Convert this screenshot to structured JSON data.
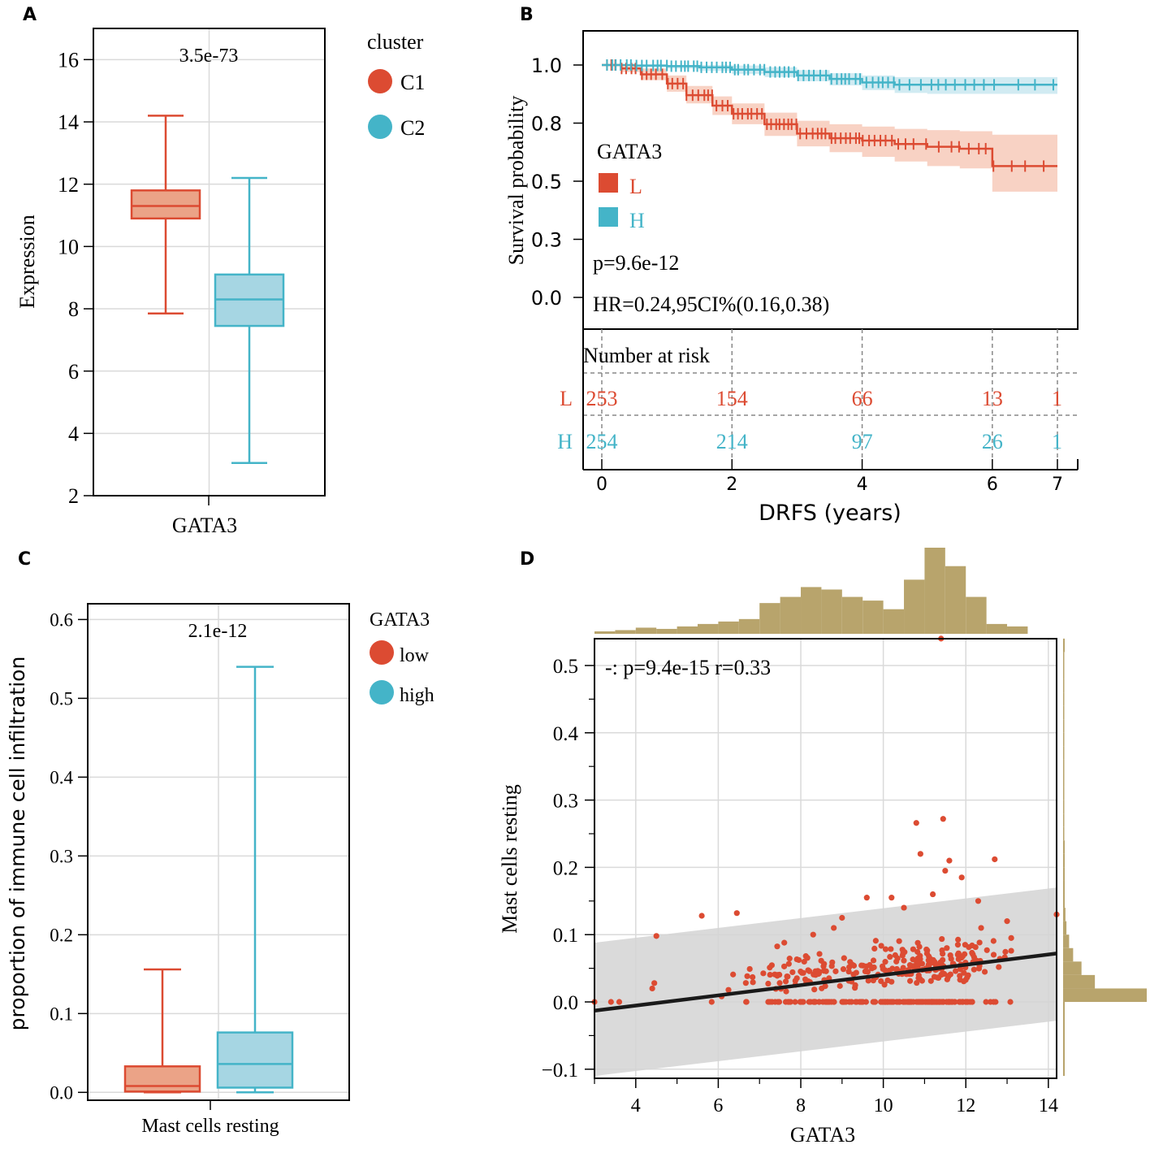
{
  "colors": {
    "red": "#dc4b32",
    "blue": "#44b4c8",
    "red_fill": "#eba387",
    "blue_fill": "#a6d6e3",
    "red_band": "#f5c3b0",
    "blue_band": "#c1e4ee",
    "gold": "#b8a46c",
    "ci_gray": "#d3d3d3",
    "grid": "#dadada",
    "risk_line": "#888888"
  },
  "chart_data": [
    {
      "panel": "A",
      "type": "box",
      "annotation": "3.5e-73",
      "xlabel": "GATA3",
      "ylabel": "Expression",
      "ylim": [
        2,
        17
      ],
      "yticks": [
        "2",
        "4",
        "6",
        "8",
        "10",
        "12",
        "14",
        "16"
      ],
      "legend": {
        "title": "cluster",
        "position": "right",
        "entries": [
          "C1",
          "C2"
        ]
      },
      "boxes": [
        {
          "name": "C1",
          "whisker_low": 7.85,
          "q1": 10.9,
          "median": 11.3,
          "q3": 11.8,
          "whisker_high": 14.2
        },
        {
          "name": "C2",
          "whisker_low": 3.05,
          "q1": 7.45,
          "median": 8.3,
          "q3": 9.1,
          "whisker_high": 12.2
        }
      ]
    },
    {
      "panel": "B",
      "type": "line",
      "xlabel": "DRFS (years)",
      "ylabel": "Survival probability",
      "xlim": [
        -0.3,
        7.4
      ],
      "ylim": [
        -0.08,
        1.1
      ],
      "xticks": [
        "0",
        "2",
        "4",
        "6",
        "7"
      ],
      "yticks": [
        "0.0",
        "0.3",
        "0.5",
        "0.8",
        "1.0"
      ],
      "legend": {
        "title": "GATA3",
        "entries": [
          "L",
          "H"
        ]
      },
      "pvalue": "p=9.6e-12",
      "hr": "HR=0.24,95CI%(0.16,0.38)",
      "series": [
        {
          "name": "L",
          "x": [
            0,
            0.3,
            0.6,
            1.0,
            1.3,
            1.7,
            2.0,
            2.5,
            3.0,
            3.5,
            4.0,
            4.5,
            5.0,
            5.5,
            6.0,
            7.0
          ],
          "y": [
            1.0,
            0.985,
            0.96,
            0.92,
            0.87,
            0.825,
            0.79,
            0.745,
            0.705,
            0.685,
            0.675,
            0.66,
            0.648,
            0.64,
            0.565,
            0.565
          ],
          "ci_low": [
            1.0,
            0.97,
            0.935,
            0.885,
            0.835,
            0.785,
            0.745,
            0.695,
            0.65,
            0.625,
            0.605,
            0.585,
            0.565,
            0.555,
            0.455,
            0.455
          ],
          "ci_high": [
            1.0,
            1.0,
            0.985,
            0.955,
            0.91,
            0.865,
            0.835,
            0.795,
            0.76,
            0.745,
            0.735,
            0.725,
            0.72,
            0.715,
            0.7,
            0.7
          ]
        },
        {
          "name": "H",
          "x": [
            0,
            0.5,
            1.0,
            1.5,
            2.0,
            2.5,
            3.0,
            3.5,
            4.0,
            4.5,
            5.0,
            5.5,
            6.0,
            6.5,
            7.0
          ],
          "y": [
            1.0,
            0.998,
            0.995,
            0.99,
            0.98,
            0.97,
            0.955,
            0.94,
            0.925,
            0.915,
            0.915,
            0.915,
            0.915,
            0.915,
            0.915
          ],
          "ci_low": [
            1.0,
            0.99,
            0.985,
            0.975,
            0.962,
            0.948,
            0.93,
            0.912,
            0.892,
            0.88,
            0.876,
            0.876,
            0.876,
            0.876,
            0.876
          ],
          "ci_high": [
            1.0,
            1.0,
            1.0,
            1.0,
            0.998,
            0.99,
            0.978,
            0.965,
            0.955,
            0.948,
            0.948,
            0.948,
            0.948,
            0.948,
            0.948
          ]
        }
      ],
      "risk_table": {
        "title": "Number at risk",
        "times": [
          0,
          2,
          4,
          6,
          7
        ],
        "rows": [
          {
            "name": "L",
            "counts": [
              "253",
              "154",
              "66",
              "13",
              "1"
            ]
          },
          {
            "name": "H",
            "counts": [
              "254",
              "214",
              "97",
              "26",
              "1"
            ]
          }
        ]
      }
    },
    {
      "panel": "C",
      "type": "box",
      "annotation": "2.1e-12",
      "xlabel": "Mast cells resting",
      "ylabel": "proportion of immune cell infiltration",
      "ylim": [
        -0.01,
        0.62
      ],
      "yticks": [
        "0.0",
        "0.1",
        "0.2",
        "0.3",
        "0.4",
        "0.5",
        "0.6"
      ],
      "legend": {
        "title": "GATA3",
        "position": "right",
        "entries": [
          "low",
          "high"
        ]
      },
      "boxes": [
        {
          "name": "low",
          "whisker_low": 0.0,
          "q1": 0.001,
          "median": 0.008,
          "q3": 0.033,
          "whisker_high": 0.156
        },
        {
          "name": "high",
          "whisker_low": 0.0,
          "q1": 0.006,
          "median": 0.036,
          "q3": 0.076,
          "whisker_high": 0.54
        }
      ]
    },
    {
      "panel": "D",
      "type": "scatter",
      "xlabel": "GATA3",
      "ylabel": "Mast cells resting",
      "xlim": [
        3,
        14.2
      ],
      "ylim": [
        -0.11,
        0.54
      ],
      "xticks": [
        "4",
        "6",
        "8",
        "10",
        "12",
        "14"
      ],
      "yticks": [
        "−0.1",
        "0.0",
        "0.1",
        "0.2",
        "0.3",
        "0.4",
        "0.5"
      ],
      "annotation": "-: p=9.4e-15 r=0.33",
      "fit": {
        "x": [
          3,
          14.2
        ],
        "y": [
          -0.013,
          0.072
        ]
      },
      "ci_band": {
        "x": [
          3,
          14.2
        ],
        "upper": [
          0.088,
          0.17
        ],
        "lower": [
          -0.11,
          -0.028
        ]
      },
      "notable_points": [
        [
          3.0,
          0.0
        ],
        [
          3.4,
          0.0
        ],
        [
          3.6,
          0.0
        ],
        [
          4.4,
          0.02
        ],
        [
          4.45,
          0.028
        ],
        [
          4.5,
          0.098
        ],
        [
          5.6,
          0.128
        ],
        [
          6.45,
          0.132
        ],
        [
          11.4,
          0.54
        ],
        [
          11.45,
          0.272
        ],
        [
          10.8,
          0.266
        ],
        [
          12.7,
          0.212
        ],
        [
          14.2,
          0.13
        ],
        [
          11.5,
          0.195
        ],
        [
          10.9,
          0.22
        ],
        [
          11.6,
          0.21
        ],
        [
          11.9,
          0.185
        ],
        [
          7.6,
          0.088
        ],
        [
          8.3,
          0.1
        ],
        [
          9.0,
          0.125
        ],
        [
          9.6,
          0.155
        ],
        [
          10.2,
          0.155
        ],
        [
          12.3,
          0.15
        ],
        [
          13.0,
          0.12
        ],
        [
          13.1,
          0.095
        ],
        [
          8.8,
          0.11
        ],
        [
          10.5,
          0.14
        ],
        [
          11.2,
          0.16
        ]
      ],
      "top_histogram": {
        "bin_start": 3,
        "bin_width": 0.5,
        "counts": [
          2,
          3,
          5,
          4,
          6,
          8,
          10,
          12,
          25,
          30,
          38,
          36,
          30,
          27,
          20,
          44,
          70,
          55,
          30,
          8,
          6
        ]
      },
      "right_histogram": {
        "bin_start": 0.0,
        "bin_width": 0.02,
        "counts": [
          250,
          95,
          55,
          30,
          18,
          10,
          7,
          3,
          2,
          1,
          1,
          1,
          0,
          0,
          0,
          0,
          0,
          0,
          0,
          0,
          0,
          0,
          0,
          0,
          0,
          0,
          1
        ]
      }
    }
  ],
  "panel_labels": [
    "A",
    "B",
    "C",
    "D"
  ]
}
